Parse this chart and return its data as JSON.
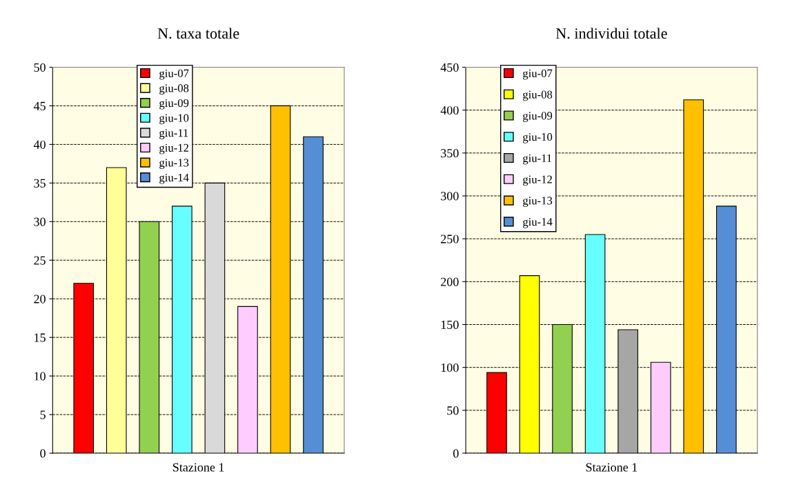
{
  "chart_data": [
    {
      "type": "bar",
      "title": "N. taxa totale",
      "categories": [
        "Stazione 1"
      ],
      "ylim": [
        0,
        50
      ],
      "yticks": [
        0,
        5,
        10,
        15,
        20,
        25,
        30,
        35,
        40,
        45,
        50
      ],
      "grid": "y",
      "legend": "top left",
      "series": [
        {
          "name": "giu-07",
          "color": "#ff0000",
          "values": [
            22
          ]
        },
        {
          "name": "giu-08",
          "color": "#ffff99",
          "values": [
            37
          ]
        },
        {
          "name": "giu-09",
          "color": "#92d050",
          "values": [
            30
          ]
        },
        {
          "name": "giu-10",
          "color": "#66ffff",
          "values": [
            32
          ]
        },
        {
          "name": "giu-11",
          "color": "#d9d9d9",
          "values": [
            35
          ]
        },
        {
          "name": "giu-12",
          "color": "#ffccff",
          "values": [
            19
          ]
        },
        {
          "name": "giu-13",
          "color": "#ffc000",
          "values": [
            45
          ]
        },
        {
          "name": "giu-14",
          "color": "#558ed5",
          "values": [
            41
          ]
        }
      ]
    },
    {
      "type": "bar",
      "title": "N. individui totale",
      "categories": [
        "Stazione 1"
      ],
      "ylim": [
        0,
        450
      ],
      "yticks": [
        0,
        50,
        100,
        150,
        200,
        250,
        300,
        350,
        400,
        450
      ],
      "grid": "y",
      "legend": "top left",
      "series": [
        {
          "name": "giu-07",
          "color": "#ff0000",
          "values": [
            94
          ]
        },
        {
          "name": "giu-08",
          "color": "#ffff00",
          "values": [
            207
          ]
        },
        {
          "name": "giu-09",
          "color": "#92d050",
          "values": [
            150
          ]
        },
        {
          "name": "giu-10",
          "color": "#66ffff",
          "values": [
            255
          ]
        },
        {
          "name": "giu-11",
          "color": "#a6a6a6",
          "values": [
            144
          ]
        },
        {
          "name": "giu-12",
          "color": "#ffccff",
          "values": [
            106
          ]
        },
        {
          "name": "giu-13",
          "color": "#ffc000",
          "values": [
            412
          ]
        },
        {
          "name": "giu-14",
          "color": "#558ed5",
          "values": [
            288
          ]
        }
      ]
    }
  ]
}
